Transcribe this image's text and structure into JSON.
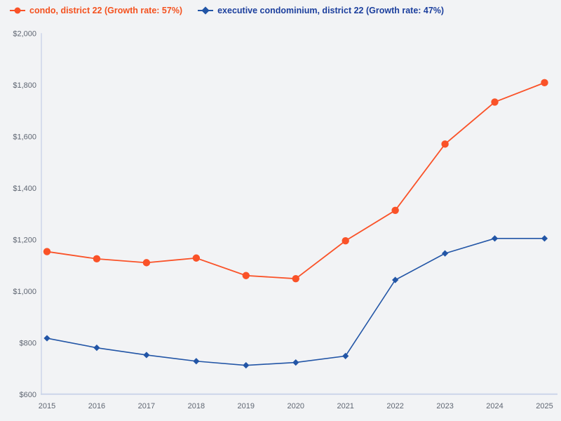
{
  "page": {
    "background_color": "#f2f3f5"
  },
  "legend": {
    "position": "top-left",
    "items": [
      {
        "label": "condo, district 22 (Growth rate: 57%)",
        "marker": "circle",
        "color": "#fa5228"
      },
      {
        "label": "executive condominium, district 22 (Growth rate: 47%)",
        "marker": "diamond",
        "color": "#2255a6"
      }
    ]
  },
  "chart_data": {
    "type": "line",
    "title": "",
    "xlabel": "",
    "ylabel": "",
    "x_labels": [
      "2015",
      "2016",
      "2017",
      "2018",
      "2019",
      "2020",
      "2021",
      "2022",
      "2023",
      "2024",
      "2025"
    ],
    "series": [
      {
        "name": "condo, district 22",
        "growth_rate": "57%",
        "marker": "circle",
        "color": "#fa5228",
        "text_color": "#f4511e",
        "line_width": 1.8,
        "values": [
          1153,
          1125,
          1110,
          1128,
          1060,
          1048,
          1195,
          1313,
          1570,
          1733,
          1808
        ]
      },
      {
        "name": "executive condominium, district 22",
        "growth_rate": "47%",
        "marker": "diamond",
        "color": "#2255a6",
        "text_color": "#1c3f9d",
        "line_width": 1.6,
        "values": [
          817,
          780,
          752,
          728,
          712,
          723,
          748,
          1043,
          1146,
          1204,
          1204
        ]
      }
    ],
    "ylim": [
      600,
      2000
    ],
    "ytick_step": 200,
    "yticks": [
      {
        "value": 600,
        "label": "$600"
      },
      {
        "value": 800,
        "label": "$800"
      },
      {
        "value": 1000,
        "label": "$1,000"
      },
      {
        "value": 1200,
        "label": "$1,200"
      },
      {
        "value": 1400,
        "label": "$1,400"
      },
      {
        "value": 1600,
        "label": "$1,600"
      },
      {
        "value": 1800,
        "label": "$1,800"
      },
      {
        "value": 2000,
        "label": "$2,000"
      }
    ],
    "grid": false,
    "legend_position": "top-left",
    "axis_color": "#ccd5e9",
    "tick_text_color": "#5f6672",
    "currency_unit": "$"
  }
}
